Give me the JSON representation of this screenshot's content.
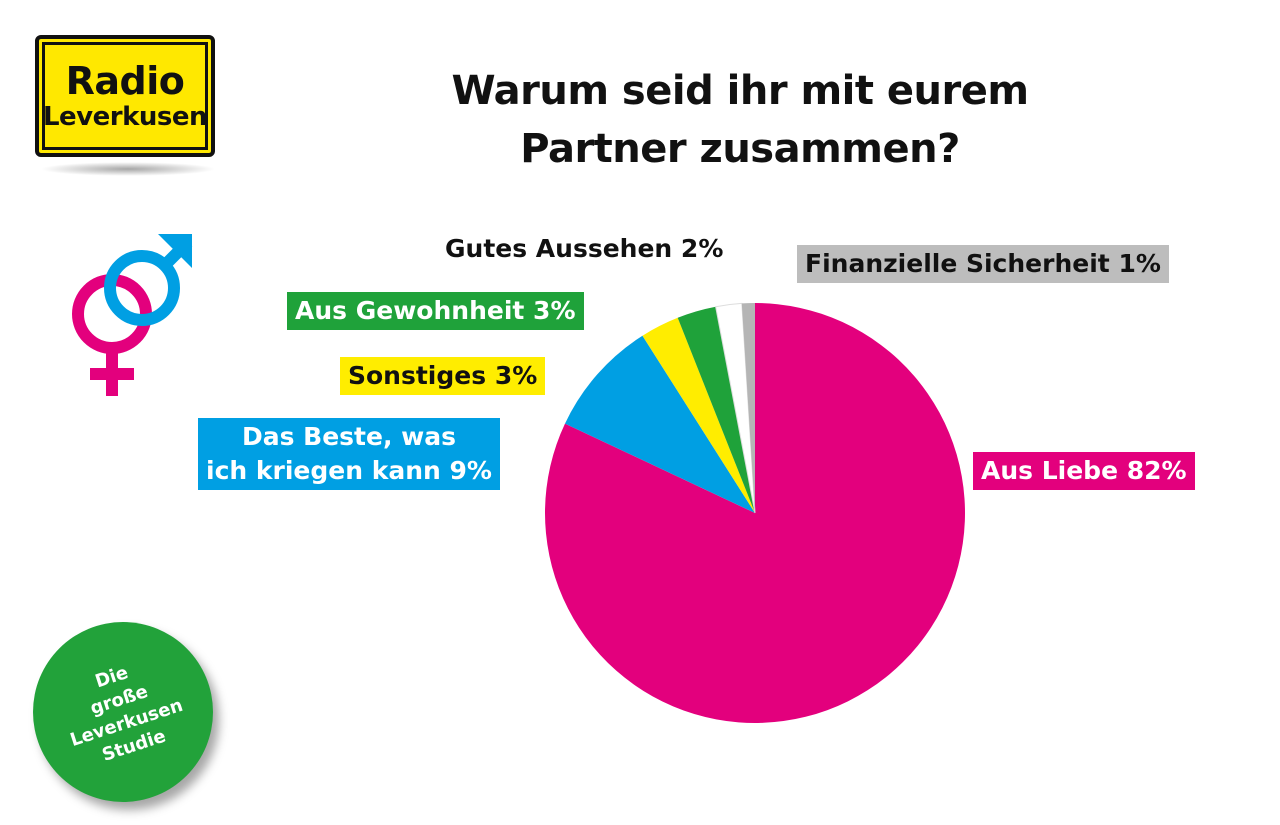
{
  "logo": {
    "line1": "Radio",
    "line2": "Leverkusen"
  },
  "title": {
    "line1": "Warum seid ihr mit eurem",
    "line2": "Partner zusammen?"
  },
  "badge": {
    "lines": [
      "Die",
      "große",
      "Leverkusen",
      "Studie"
    ]
  },
  "colors": {
    "pink": "#e3007d",
    "blue": "#009fe3",
    "yellow": "#ffed00",
    "green": "#1fa23a",
    "white": "#ffffff",
    "gray": "#b5b5b5",
    "logo_yellow": "#ffe800"
  },
  "icons": {
    "gender": "venus-mars-icon"
  },
  "chart_data": {
    "type": "pie",
    "title": "Warum seid ihr mit eurem Partner zusammen?",
    "slices": [
      {
        "label": "Aus Liebe",
        "value": 82,
        "color": "#e3007d",
        "text": "Aus Liebe 82%"
      },
      {
        "label": "Das Beste, was ich kriegen kann",
        "value": 9,
        "color": "#009fe3",
        "text_lines": [
          "Das Beste, was",
          "ich kriegen kann 9%"
        ]
      },
      {
        "label": "Sonstiges",
        "value": 3,
        "color": "#ffed00",
        "text": "Sonstiges 3%"
      },
      {
        "label": "Aus Gewohnheit",
        "value": 3,
        "color": "#1fa23a",
        "text": "Aus Gewohnheit 3%"
      },
      {
        "label": "Gutes Aussehen",
        "value": 2,
        "color": "#ffffff",
        "text": "Gutes Aussehen 2%"
      },
      {
        "label": "Finanzielle Sicherheit",
        "value": 1,
        "color": "#b5b5b5",
        "text": "Finanzielle Sicherheit 1%"
      }
    ]
  }
}
